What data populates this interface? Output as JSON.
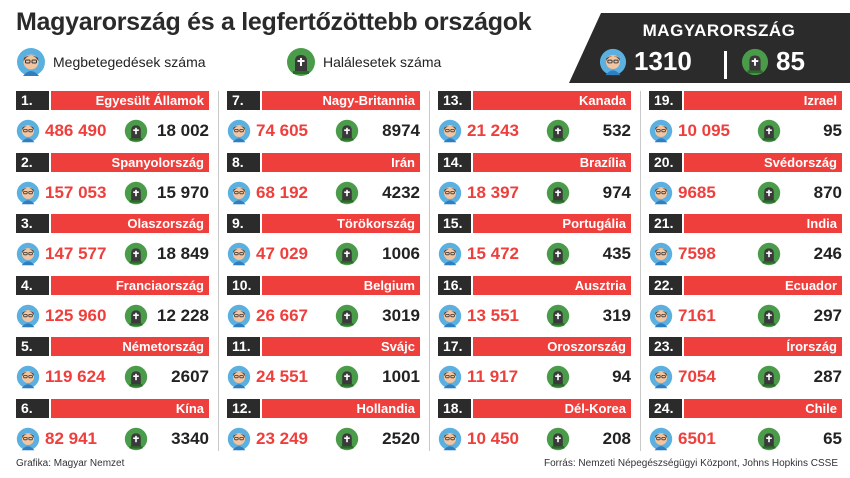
{
  "title": "Magyarország és a legfertőzöttebb országok",
  "legend": {
    "cases_label": "Megbetegedések száma",
    "deaths_label": "Halálesetek száma",
    "cases_icon": "person-face-icon",
    "deaths_icon": "tombstone-icon"
  },
  "hungary": {
    "name": "MAGYARORSZÁG",
    "cases": "1310",
    "deaths": "85"
  },
  "colors": {
    "accent_red": "#ee3f3c",
    "dark": "#2b2b2b"
  },
  "countries": [
    {
      "rank": "1.",
      "name": "Egyesült Államok",
      "cases": "486 490",
      "deaths": "18 002"
    },
    {
      "rank": "2.",
      "name": "Spanyolország",
      "cases": "157 053",
      "deaths": "15 970"
    },
    {
      "rank": "3.",
      "name": "Olaszország",
      "cases": "147 577",
      "deaths": "18 849"
    },
    {
      "rank": "4.",
      "name": "Franciaország",
      "cases": "125 960",
      "deaths": "12 228"
    },
    {
      "rank": "5.",
      "name": "Németország",
      "cases": "119 624",
      "deaths": "2607"
    },
    {
      "rank": "6.",
      "name": "Kína",
      "cases": "82 941",
      "deaths": "3340"
    },
    {
      "rank": "7.",
      "name": "Nagy-Britannia",
      "cases": "74 605",
      "deaths": "8974"
    },
    {
      "rank": "8.",
      "name": "Irán",
      "cases": "68 192",
      "deaths": "4232"
    },
    {
      "rank": "9.",
      "name": "Törökország",
      "cases": "47 029",
      "deaths": "1006"
    },
    {
      "rank": "10.",
      "name": "Belgium",
      "cases": "26 667",
      "deaths": "3019"
    },
    {
      "rank": "11.",
      "name": "Svájc",
      "cases": "24 551",
      "deaths": "1001"
    },
    {
      "rank": "12.",
      "name": "Hollandia",
      "cases": "23 249",
      "deaths": "2520"
    },
    {
      "rank": "13.",
      "name": "Kanada",
      "cases": "21 243",
      "deaths": "532"
    },
    {
      "rank": "14.",
      "name": "Brazília",
      "cases": "18 397",
      "deaths": "974"
    },
    {
      "rank": "15.",
      "name": "Portugália",
      "cases": "15 472",
      "deaths": "435"
    },
    {
      "rank": "16.",
      "name": "Ausztria",
      "cases": "13 551",
      "deaths": "319"
    },
    {
      "rank": "17.",
      "name": "Oroszország",
      "cases": "11 917",
      "deaths": "94"
    },
    {
      "rank": "18.",
      "name": "Dél-Korea",
      "cases": "10 450",
      "deaths": "208"
    },
    {
      "rank": "19.",
      "name": "Izrael",
      "cases": "10 095",
      "deaths": "95"
    },
    {
      "rank": "20.",
      "name": "Svédország",
      "cases": "9685",
      "deaths": "870"
    },
    {
      "rank": "21.",
      "name": "India",
      "cases": "7598",
      "deaths": "246"
    },
    {
      "rank": "22.",
      "name": "Ecuador",
      "cases": "7161",
      "deaths": "297"
    },
    {
      "rank": "23.",
      "name": "Írország",
      "cases": "7054",
      "deaths": "287"
    },
    {
      "rank": "24.",
      "name": "Chile",
      "cases": "6501",
      "deaths": "65"
    }
  ],
  "footer": {
    "credit": "Grafika: Magyar Nemzet",
    "source": "Forrás: Nemzeti Népegészségügyi Központ, Johns Hopkins CSSE"
  }
}
